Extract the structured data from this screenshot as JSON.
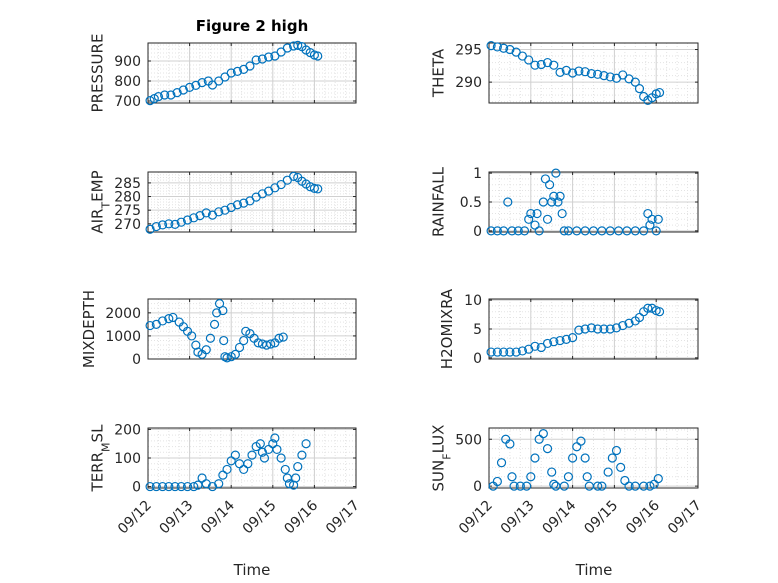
{
  "chart_data": [
    {
      "type": "scatter",
      "title": "Figure 2 high",
      "ylabel": "PRESSURE",
      "ylim": [
        690,
        990
      ],
      "yticks": [
        700,
        800,
        900
      ],
      "ytick_labels": [
        "700",
        "800",
        "900"
      ],
      "xlim": [
        0,
        5
      ],
      "points": [
        [
          0.05,
          702
        ],
        [
          0.15,
          712
        ],
        [
          0.25,
          722
        ],
        [
          0.4,
          730
        ],
        [
          0.55,
          730
        ],
        [
          0.7,
          742
        ],
        [
          0.85,
          755
        ],
        [
          1.0,
          768
        ],
        [
          1.15,
          778
        ],
        [
          1.3,
          792
        ],
        [
          1.45,
          800
        ],
        [
          1.55,
          780
        ],
        [
          1.7,
          800
        ],
        [
          1.85,
          820
        ],
        [
          2.0,
          840
        ],
        [
          2.15,
          848
        ],
        [
          2.3,
          858
        ],
        [
          2.45,
          875
        ],
        [
          2.6,
          905
        ],
        [
          2.75,
          910
        ],
        [
          2.9,
          920
        ],
        [
          3.05,
          925
        ],
        [
          3.2,
          945
        ],
        [
          3.35,
          965
        ],
        [
          3.5,
          975
        ],
        [
          3.6,
          978
        ],
        [
          3.7,
          972
        ],
        [
          3.8,
          955
        ],
        [
          3.9,
          942
        ],
        [
          4.0,
          930
        ],
        [
          4.08,
          925
        ]
      ]
    },
    {
      "type": "scatter",
      "title": "",
      "ylabel": "THETA",
      "ylim": [
        286.8,
        296
      ],
      "yticks": [
        290,
        295
      ],
      "ytick_labels": [
        "290",
        "295"
      ],
      "xlim": [
        0,
        5
      ],
      "points": [
        [
          0.05,
          295.6
        ],
        [
          0.2,
          295.4
        ],
        [
          0.35,
          295.2
        ],
        [
          0.5,
          295.0
        ],
        [
          0.65,
          294.6
        ],
        [
          0.8,
          294.0
        ],
        [
          0.95,
          293.4
        ],
        [
          1.1,
          292.6
        ],
        [
          1.25,
          292.7
        ],
        [
          1.4,
          293.0
        ],
        [
          1.55,
          292.6
        ],
        [
          1.7,
          291.5
        ],
        [
          1.85,
          291.8
        ],
        [
          2.0,
          291.4
        ],
        [
          2.15,
          291.7
        ],
        [
          2.3,
          291.6
        ],
        [
          2.45,
          291.3
        ],
        [
          2.6,
          291.2
        ],
        [
          2.75,
          291.0
        ],
        [
          2.9,
          290.8
        ],
        [
          3.05,
          290.6
        ],
        [
          3.2,
          291.1
        ],
        [
          3.35,
          290.5
        ],
        [
          3.5,
          290.0
        ],
        [
          3.6,
          289.0
        ],
        [
          3.7,
          287.8
        ],
        [
          3.8,
          287.2
        ],
        [
          3.9,
          287.6
        ],
        [
          4.0,
          288.2
        ],
        [
          4.08,
          288.4
        ]
      ]
    },
    {
      "type": "scatter",
      "title": "",
      "ylabel": "AIR_TEMP",
      "ylabel_main": "AIR",
      "ylabel_sub": "T",
      "ylabel_rest": "EMP",
      "ylim": [
        267,
        289
      ],
      "yticks": [
        270,
        275,
        280,
        285
      ],
      "ytick_labels": [
        "270",
        "275",
        "280",
        "285"
      ],
      "xlim": [
        0,
        5
      ],
      "points": [
        [
          0.05,
          268.0
        ],
        [
          0.2,
          269.0
        ],
        [
          0.35,
          269.6
        ],
        [
          0.5,
          270.0
        ],
        [
          0.65,
          269.8
        ],
        [
          0.8,
          270.6
        ],
        [
          0.95,
          271.4
        ],
        [
          1.1,
          272.2
        ],
        [
          1.25,
          273.0
        ],
        [
          1.4,
          274.0
        ],
        [
          1.55,
          273.2
        ],
        [
          1.7,
          274.4
        ],
        [
          1.85,
          275.0
        ],
        [
          2.0,
          276.0
        ],
        [
          2.15,
          277.0
        ],
        [
          2.3,
          277.6
        ],
        [
          2.45,
          278.4
        ],
        [
          2.6,
          279.8
        ],
        [
          2.75,
          281.0
        ],
        [
          2.9,
          282.0
        ],
        [
          3.05,
          283.2
        ],
        [
          3.2,
          284.4
        ],
        [
          3.35,
          286.0
        ],
        [
          3.5,
          287.4
        ],
        [
          3.6,
          287.0
        ],
        [
          3.7,
          285.6
        ],
        [
          3.8,
          284.6
        ],
        [
          3.9,
          283.6
        ],
        [
          4.0,
          283.0
        ],
        [
          4.08,
          282.8
        ]
      ]
    },
    {
      "type": "scatter",
      "title": "",
      "ylabel": "RAINFALL",
      "ylim": [
        -0.02,
        1.02
      ],
      "yticks": [
        0,
        0.5,
        1
      ],
      "ytick_labels": [
        "0",
        "0.5",
        "1"
      ],
      "xlim": [
        0,
        5
      ],
      "points": [
        [
          0.05,
          0
        ],
        [
          0.2,
          0
        ],
        [
          0.35,
          0
        ],
        [
          0.45,
          0.5
        ],
        [
          0.55,
          0
        ],
        [
          0.7,
          0
        ],
        [
          0.85,
          0
        ],
        [
          0.95,
          0.2
        ],
        [
          1.0,
          0.3
        ],
        [
          1.1,
          0.1
        ],
        [
          1.15,
          0.3
        ],
        [
          1.2,
          0
        ],
        [
          1.3,
          0.5
        ],
        [
          1.35,
          0.9
        ],
        [
          1.4,
          0.2
        ],
        [
          1.45,
          0.8
        ],
        [
          1.5,
          0.5
        ],
        [
          1.55,
          0.6
        ],
        [
          1.6,
          1.0
        ],
        [
          1.65,
          0.5
        ],
        [
          1.7,
          0.6
        ],
        [
          1.75,
          0.3
        ],
        [
          1.8,
          0
        ],
        [
          1.9,
          0
        ],
        [
          2.1,
          0
        ],
        [
          2.3,
          0
        ],
        [
          2.5,
          0
        ],
        [
          2.7,
          0
        ],
        [
          2.9,
          0
        ],
        [
          3.1,
          0
        ],
        [
          3.3,
          0
        ],
        [
          3.5,
          0
        ],
        [
          3.7,
          0
        ],
        [
          3.8,
          0.3
        ],
        [
          3.85,
          0.1
        ],
        [
          3.9,
          0.2
        ],
        [
          4.0,
          0
        ],
        [
          4.05,
          0.2
        ]
      ]
    },
    {
      "type": "scatter",
      "title": "",
      "ylabel": "MIXDEPTH",
      "ylim": [
        0,
        2600
      ],
      "yticks": [
        0,
        1000,
        2000
      ],
      "ytick_labels": [
        "0",
        "1000",
        "2000"
      ],
      "xlim": [
        0,
        5
      ],
      "points": [
        [
          0.05,
          1450
        ],
        [
          0.2,
          1500
        ],
        [
          0.35,
          1650
        ],
        [
          0.5,
          1750
        ],
        [
          0.6,
          1800
        ],
        [
          0.75,
          1600
        ],
        [
          0.85,
          1400
        ],
        [
          0.95,
          1200
        ],
        [
          1.05,
          1000
        ],
        [
          1.15,
          600
        ],
        [
          1.2,
          300
        ],
        [
          1.3,
          200
        ],
        [
          1.4,
          400
        ],
        [
          1.5,
          900
        ],
        [
          1.6,
          1500
        ],
        [
          1.65,
          2000
        ],
        [
          1.72,
          2400
        ],
        [
          1.8,
          2100
        ],
        [
          1.82,
          800
        ],
        [
          1.85,
          100
        ],
        [
          1.9,
          50
        ],
        [
          2.0,
          100
        ],
        [
          2.1,
          200
        ],
        [
          2.2,
          500
        ],
        [
          2.3,
          800
        ],
        [
          2.35,
          1200
        ],
        [
          2.45,
          1100
        ],
        [
          2.55,
          900
        ],
        [
          2.65,
          700
        ],
        [
          2.75,
          650
        ],
        [
          2.85,
          600
        ],
        [
          2.95,
          650
        ],
        [
          3.05,
          700
        ],
        [
          3.15,
          900
        ],
        [
          3.25,
          950
        ]
      ]
    },
    {
      "type": "scatter",
      "title": "",
      "ylabel": "H2OMIXRA",
      "ylim": [
        -0.2,
        10.2
      ],
      "yticks": [
        0,
        5,
        10
      ],
      "ytick_labels": [
        "0",
        "5",
        "10"
      ],
      "xlim": [
        0,
        5
      ],
      "points": [
        [
          0.05,
          1.0
        ],
        [
          0.2,
          1.0
        ],
        [
          0.35,
          1.0
        ],
        [
          0.5,
          1.0
        ],
        [
          0.65,
          1.0
        ],
        [
          0.8,
          1.2
        ],
        [
          0.95,
          1.5
        ],
        [
          1.1,
          2.0
        ],
        [
          1.25,
          1.8
        ],
        [
          1.4,
          2.5
        ],
        [
          1.55,
          2.8
        ],
        [
          1.7,
          3.0
        ],
        [
          1.85,
          3.2
        ],
        [
          2.0,
          3.5
        ],
        [
          2.15,
          4.8
        ],
        [
          2.3,
          5.0
        ],
        [
          2.45,
          5.2
        ],
        [
          2.6,
          5.0
        ],
        [
          2.75,
          5.0
        ],
        [
          2.9,
          5.0
        ],
        [
          3.05,
          5.2
        ],
        [
          3.2,
          5.6
        ],
        [
          3.35,
          6.0
        ],
        [
          3.5,
          6.4
        ],
        [
          3.6,
          7.0
        ],
        [
          3.7,
          8.0
        ],
        [
          3.8,
          8.6
        ],
        [
          3.9,
          8.6
        ],
        [
          4.0,
          8.2
        ],
        [
          4.08,
          8.0
        ]
      ]
    },
    {
      "type": "scatter",
      "title": "",
      "ylabel": "TERR_MSL",
      "ylabel_main": "TERR",
      "ylabel_sub": "M",
      "ylabel_rest": "SL",
      "xlabel": "Time",
      "ylim": [
        -5,
        205
      ],
      "yticks": [
        0,
        100,
        200
      ],
      "ytick_labels": [
        "0",
        "100",
        "200"
      ],
      "xlim": [
        0,
        5
      ],
      "xticks": [
        0,
        1,
        2,
        3,
        4,
        5
      ],
      "xtick_labels": [
        "09/12",
        "09/13",
        "09/14",
        "09/15",
        "09/16",
        "09/17"
      ],
      "points": [
        [
          0.05,
          0
        ],
        [
          0.2,
          0
        ],
        [
          0.35,
          0
        ],
        [
          0.5,
          0
        ],
        [
          0.65,
          0
        ],
        [
          0.8,
          0
        ],
        [
          0.95,
          0
        ],
        [
          1.1,
          0
        ],
        [
          1.2,
          5
        ],
        [
          1.3,
          30
        ],
        [
          1.4,
          10
        ],
        [
          1.55,
          0
        ],
        [
          1.7,
          10
        ],
        [
          1.8,
          40
        ],
        [
          1.9,
          60
        ],
        [
          2.0,
          90
        ],
        [
          2.1,
          110
        ],
        [
          2.2,
          80
        ],
        [
          2.3,
          60
        ],
        [
          2.4,
          80
        ],
        [
          2.5,
          110
        ],
        [
          2.6,
          140
        ],
        [
          2.7,
          150
        ],
        [
          2.75,
          120
        ],
        [
          2.8,
          100
        ],
        [
          2.9,
          130
        ],
        [
          3.0,
          150
        ],
        [
          3.05,
          170
        ],
        [
          3.1,
          130
        ],
        [
          3.2,
          100
        ],
        [
          3.3,
          60
        ],
        [
          3.35,
          30
        ],
        [
          3.4,
          10
        ],
        [
          3.5,
          5
        ],
        [
          3.55,
          30
        ],
        [
          3.6,
          70
        ],
        [
          3.7,
          110
        ],
        [
          3.8,
          150
        ]
      ]
    },
    {
      "type": "scatter",
      "title": "",
      "ylabel": "SUN_FLUX",
      "ylabel_main": "SUN",
      "ylabel_sub": "F",
      "ylabel_rest": "LUX",
      "xlabel": "Time",
      "ylim": [
        -20,
        620
      ],
      "yticks": [
        0,
        500
      ],
      "ytick_labels": [
        "0",
        "500"
      ],
      "xlim": [
        0,
        5
      ],
      "xticks": [
        0,
        1,
        2,
        3,
        4,
        5
      ],
      "xtick_labels": [
        "09/12",
        "09/13",
        "09/14",
        "09/15",
        "09/16",
        "09/17"
      ],
      "points": [
        [
          0.1,
          0
        ],
        [
          0.2,
          50
        ],
        [
          0.3,
          250
        ],
        [
          0.4,
          500
        ],
        [
          0.5,
          450
        ],
        [
          0.55,
          100
        ],
        [
          0.6,
          0
        ],
        [
          0.75,
          0
        ],
        [
          0.9,
          0
        ],
        [
          1.0,
          100
        ],
        [
          1.1,
          300
        ],
        [
          1.2,
          500
        ],
        [
          1.3,
          560
        ],
        [
          1.4,
          400
        ],
        [
          1.5,
          150
        ],
        [
          1.55,
          20
        ],
        [
          1.6,
          0
        ],
        [
          1.8,
          0
        ],
        [
          1.9,
          100
        ],
        [
          2.0,
          300
        ],
        [
          2.1,
          420
        ],
        [
          2.2,
          480
        ],
        [
          2.3,
          300
        ],
        [
          2.35,
          100
        ],
        [
          2.4,
          0
        ],
        [
          2.6,
          0
        ],
        [
          2.7,
          0
        ],
        [
          2.85,
          150
        ],
        [
          2.95,
          300
        ],
        [
          3.05,
          380
        ],
        [
          3.15,
          200
        ],
        [
          3.25,
          60
        ],
        [
          3.35,
          0
        ],
        [
          3.5,
          0
        ],
        [
          3.7,
          0
        ],
        [
          3.85,
          0
        ],
        [
          3.95,
          20
        ],
        [
          4.05,
          80
        ]
      ]
    }
  ]
}
